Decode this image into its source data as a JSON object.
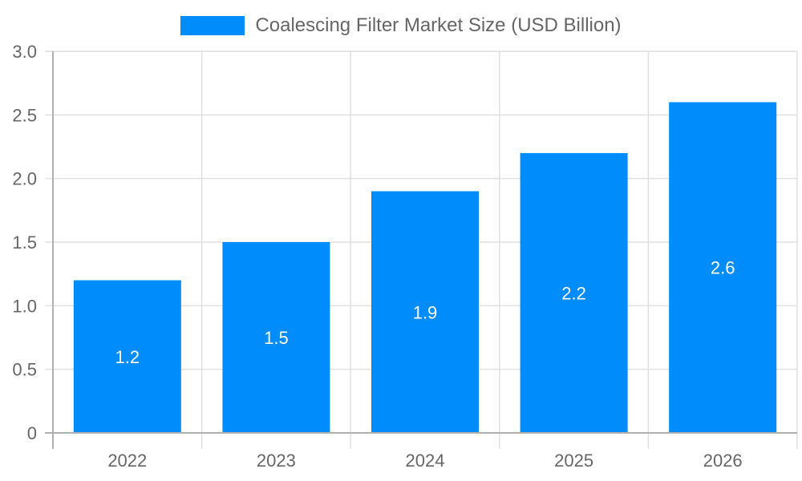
{
  "legend": {
    "label": "Coalescing Filter Market Size (USD Billion)",
    "color": "#008cfa"
  },
  "chart_data": {
    "type": "bar",
    "title": "",
    "categories": [
      "2022",
      "2023",
      "2024",
      "2025",
      "2026"
    ],
    "series": [
      {
        "name": "Coalescing Filter Market Size (USD Billion)",
        "values": [
          1.2,
          1.5,
          1.9,
          2.2,
          2.6
        ],
        "color": "#008cfa"
      }
    ],
    "values": [
      1.2,
      1.5,
      1.9,
      2.2,
      2.6
    ],
    "data_labels": [
      "1.2",
      "1.5",
      "1.9",
      "2.2",
      "2.6"
    ],
    "xlabel": "",
    "ylabel": "",
    "ylim": [
      0,
      3.0
    ],
    "yticks": [
      "0",
      "0.5",
      "1.0",
      "1.5",
      "2.0",
      "2.5",
      "3.0"
    ],
    "grid": true,
    "legend_position": "top"
  }
}
